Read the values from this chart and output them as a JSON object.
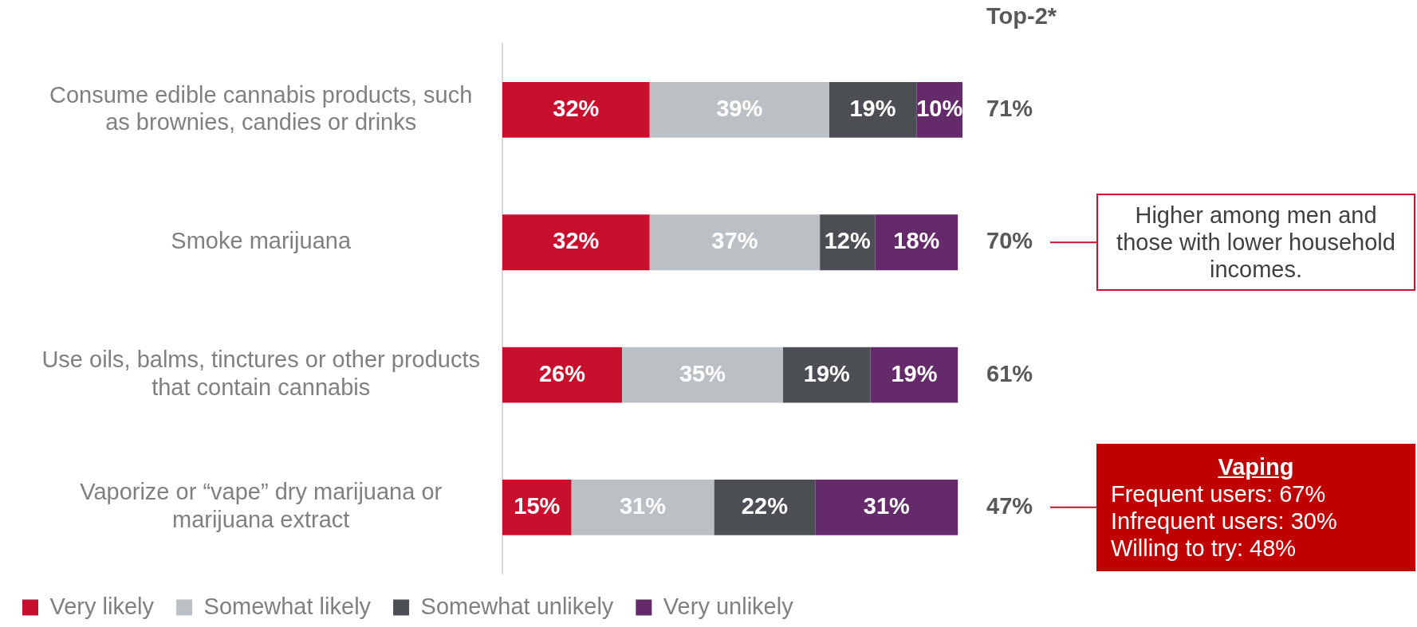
{
  "chart_data": {
    "type": "bar",
    "orientation": "horizontal",
    "stacked": true,
    "legend": "bottom",
    "tick_labels": "y",
    "xlim": [
      0,
      100
    ],
    "categories": [
      "Consume edible cannabis products, such as brownies, candies or drinks",
      "Smoke marijuana",
      "Use oils, balms, tinctures or other products that contain cannabis",
      "Vaporize or “vape” dry marijuana or marijuana extract"
    ],
    "series": [
      {
        "name": "Very likely",
        "color": "#c8102e",
        "values": [
          32,
          32,
          26,
          15
        ],
        "value_labels": [
          "32%",
          "32%",
          "26%",
          "15%"
        ]
      },
      {
        "name": "Somewhat likely",
        "color": "#bbc0c5",
        "values": [
          39,
          37,
          35,
          31
        ],
        "value_labels": [
          "39%",
          "37%",
          "35%",
          "31%"
        ]
      },
      {
        "name": "Somewhat unlikely",
        "color": "#4b4f54",
        "values": [
          19,
          12,
          19,
          22
        ],
        "value_labels": [
          "19%",
          "12%",
          "19%",
          "22%"
        ]
      },
      {
        "name": "Very unlikely",
        "color": "#642a6a",
        "values": [
          10,
          18,
          19,
          31
        ],
        "value_labels": [
          "10%",
          "18%",
          "19%",
          "31%"
        ]
      }
    ],
    "annotations": [
      "Top-2*",
      "71%",
      "70%",
      "61%",
      "47%",
      "Higher among men and those with lower household incomes.",
      "Vaping\nFrequent users: 67%\nInfrequent users: 30%\nWilling to try: 48%"
    ]
  }
}
